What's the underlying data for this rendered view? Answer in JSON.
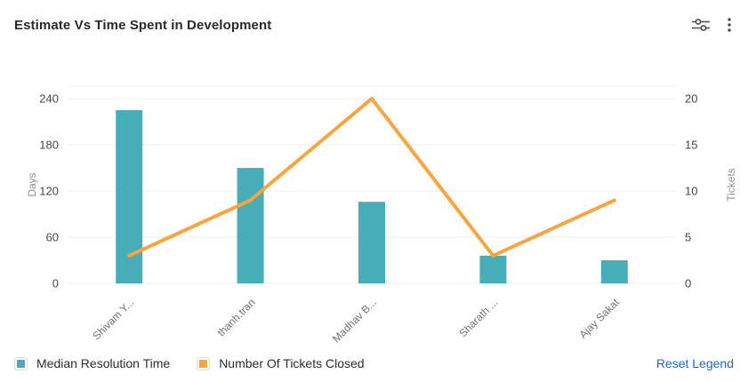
{
  "header": {
    "title": "Estimate Vs Time Spent in Development",
    "icons": [
      {
        "name": "filter-sliders-icon"
      },
      {
        "name": "more-menu-icon"
      }
    ]
  },
  "legend": {
    "items": [
      {
        "label": "Median Resolution Time",
        "color": "#47AEB9"
      },
      {
        "label": "Number Of Tickets Closed",
        "color": "#F9A43C"
      }
    ],
    "reset_label": "Reset Legend",
    "reset_color": "#1868DB"
  },
  "chart_data": {
    "type": "combo",
    "title": "Estimate Vs Time Spent in Development",
    "categories": [
      "Shivam Y...",
      "thanh.tran",
      "Madhav B...",
      "Sharath ...",
      "Ajay Sakat"
    ],
    "series": [
      {
        "name": "Median Resolution Time",
        "type": "bar",
        "axis": "left",
        "color": "#47AEB9",
        "values": [
          225,
          150,
          106,
          36,
          30
        ]
      },
      {
        "name": "Number Of Tickets Closed",
        "type": "line",
        "axis": "right",
        "color": "#F9A43C",
        "values": [
          3,
          9,
          20,
          3,
          9
        ]
      }
    ],
    "left_axis": {
      "label": "Days",
      "ticks": [
        0,
        60,
        120,
        180,
        240
      ],
      "max": 240
    },
    "right_axis": {
      "label": "Tickets",
      "ticks": [
        0,
        5,
        10,
        15,
        20
      ],
      "max": 20
    },
    "grid": true,
    "legend_position": "bottom",
    "colors": {
      "gridline": "#ECEDEF",
      "plot_top_line": "#F1F2F4",
      "tick_label": "#44474b",
      "x_label": "#6d7076",
      "axis_title": "#8e929a"
    }
  }
}
